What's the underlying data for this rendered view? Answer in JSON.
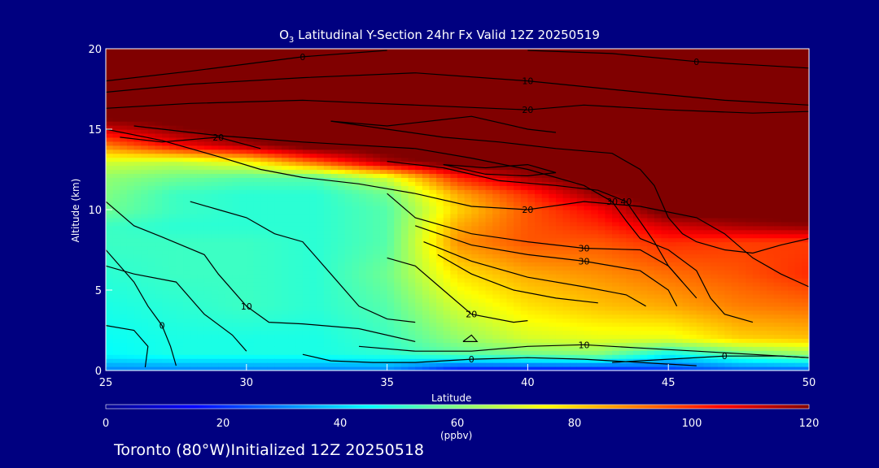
{
  "title": {
    "prefix": "O",
    "sub": "3",
    "rest": " Latitudinal Y-Section 24hr  Fx Valid 12Z 20250519"
  },
  "footer": "Toronto (80°W)Initialized 12Z 20250518",
  "colors": {
    "background": "#000080",
    "axes": "#ffffff",
    "contours": "#000000"
  },
  "chart_data": {
    "type": "heatmap",
    "xlabel": "Latitude",
    "ylabel": "Altitude (km)",
    "xlim": [
      25,
      50
    ],
    "ylim": [
      0,
      20
    ],
    "x_ticks": [
      25,
      30,
      35,
      40,
      45,
      50
    ],
    "y_ticks": [
      0,
      5,
      10,
      15,
      20
    ],
    "grid": false,
    "colorbar": {
      "units": "(ppbv)",
      "range": [
        0,
        120
      ],
      "ticks": [
        0,
        20,
        40,
        60,
        80,
        100,
        120
      ],
      "colormap": "jet"
    },
    "ozone_field": {
      "description_units": "ppbv",
      "latitudes": [
        25,
        27.5,
        30,
        32.5,
        35,
        37.5,
        40,
        42.5,
        45,
        47.5,
        50
      ],
      "altitudes": [
        0,
        1,
        2,
        4,
        6,
        8,
        9,
        10,
        11,
        12,
        13,
        14,
        15,
        16,
        18,
        20
      ],
      "values": [
        [
          30,
          30,
          30,
          30,
          30,
          15,
          15,
          15,
          20,
          25,
          25
        ],
        [
          45,
          48,
          48,
          48,
          50,
          55,
          58,
          60,
          45,
          55,
          62
        ],
        [
          46,
          48,
          48,
          48,
          52,
          62,
          70,
          72,
          72,
          80,
          82
        ],
        [
          48,
          50,
          52,
          50,
          55,
          70,
          78,
          82,
          85,
          90,
          92
        ],
        [
          50,
          52,
          52,
          50,
          58,
          78,
          85,
          88,
          92,
          95,
          100
        ],
        [
          52,
          52,
          52,
          50,
          55,
          88,
          95,
          95,
          100,
          98,
          98
        ],
        [
          52,
          50,
          50,
          50,
          55,
          85,
          95,
          100,
          110,
          115,
          118
        ],
        [
          58,
          52,
          50,
          50,
          55,
          80,
          95,
          105,
          125,
          125,
          125
        ],
        [
          60,
          52,
          50,
          50,
          58,
          85,
          100,
          118,
          125,
          125,
          125
        ],
        [
          62,
          58,
          55,
          55,
          70,
          100,
          115,
          125,
          125,
          125,
          125
        ],
        [
          70,
          68,
          75,
          95,
          115,
          125,
          125,
          125,
          125,
          125,
          125
        ],
        [
          90,
          105,
          115,
          125,
          125,
          125,
          125,
          125,
          125,
          125,
          125
        ],
        [
          110,
          118,
          125,
          125,
          125,
          125,
          125,
          125,
          125,
          125,
          125
        ],
        [
          125,
          125,
          125,
          125,
          125,
          125,
          125,
          125,
          125,
          125,
          125
        ],
        [
          125,
          125,
          125,
          125,
          125,
          125,
          125,
          125,
          125,
          125,
          125
        ],
        [
          125,
          125,
          125,
          125,
          125,
          125,
          125,
          125,
          125,
          125,
          125
        ]
      ]
    },
    "contours": [
      {
        "label": "0",
        "points": [
          [
            25,
            18
          ],
          [
            28,
            18.6
          ],
          [
            32,
            19.5
          ],
          [
            35,
            19.9
          ]
        ]
      },
      {
        "label": "0",
        "points": [
          [
            40,
            19.9
          ],
          [
            43,
            19.7
          ],
          [
            46,
            19.2
          ],
          [
            48,
            19
          ],
          [
            50,
            18.8
          ]
        ]
      },
      {
        "label": "10",
        "points": [
          [
            25,
            17.3
          ],
          [
            28,
            17.8
          ],
          [
            32,
            18.2
          ],
          [
            36,
            18.5
          ],
          [
            40,
            18
          ],
          [
            44,
            17.3
          ],
          [
            47,
            16.8
          ],
          [
            50,
            16.5
          ]
        ]
      },
      {
        "label": "20",
        "points": [
          [
            25,
            16.3
          ],
          [
            28,
            16.6
          ],
          [
            32,
            16.8
          ],
          [
            36,
            16.5
          ],
          [
            40,
            16.2
          ],
          [
            42,
            16.5
          ],
          [
            45,
            16.2
          ],
          [
            48,
            16
          ],
          [
            50,
            16.1
          ]
        ]
      },
      {
        "label": "20",
        "points": [
          [
            25,
            15
          ],
          [
            27,
            14.3
          ],
          [
            29,
            13.3
          ],
          [
            30.5,
            12.5
          ],
          [
            32,
            12
          ],
          [
            34,
            11.6
          ],
          [
            36,
            11
          ],
          [
            38,
            10.2
          ],
          [
            40,
            10
          ],
          [
            42,
            10.5
          ],
          [
            44,
            10.2
          ],
          [
            46,
            9.5
          ],
          [
            47,
            8.5
          ],
          [
            48,
            7
          ],
          [
            49,
            6
          ],
          [
            50,
            5.2
          ]
        ]
      },
      {
        "label": "30",
        "points": [
          [
            26,
            15.2
          ],
          [
            29,
            14.6
          ],
          [
            32,
            14.2
          ],
          [
            34,
            14
          ],
          [
            36,
            13.8
          ],
          [
            38,
            13.2
          ],
          [
            40,
            12.5
          ],
          [
            42,
            11.5
          ],
          [
            43,
            10.5
          ],
          [
            43.5,
            9.3
          ],
          [
            44,
            8.2
          ],
          [
            45,
            7.5
          ],
          [
            46,
            6.2
          ],
          [
            46.5,
            4.5
          ],
          [
            47,
            3.5
          ],
          [
            48,
            3
          ]
        ]
      },
      {
        "label": "40",
        "points": [
          [
            35,
            13
          ],
          [
            37,
            12.6
          ],
          [
            39,
            11.8
          ],
          [
            41,
            11.5
          ],
          [
            42.5,
            11.2
          ],
          [
            43.5,
            10.5
          ],
          [
            44.5,
            8
          ],
          [
            45,
            6.5
          ],
          [
            45.5,
            5.5
          ],
          [
            46,
            4.5
          ]
        ]
      },
      {
        "label": "",
        "points": [
          [
            33,
            15.5
          ],
          [
            35,
            15
          ],
          [
            37,
            14.5
          ],
          [
            39,
            14.2
          ],
          [
            41,
            13.8
          ],
          [
            43,
            13.5
          ],
          [
            44,
            12.5
          ],
          [
            44.5,
            11.5
          ],
          [
            45,
            9.5
          ],
          [
            45.5,
            8.5
          ],
          [
            46,
            8
          ],
          [
            47,
            7.5
          ],
          [
            48,
            7.3
          ],
          [
            49,
            7.8
          ],
          [
            50,
            8.2
          ]
        ]
      },
      {
        "label": "",
        "points": [
          [
            33,
            15.5
          ],
          [
            35,
            15.2
          ],
          [
            36.5,
            15.5
          ],
          [
            38,
            15.8
          ],
          [
            40,
            15
          ],
          [
            41,
            14.8
          ]
        ]
      },
      {
        "label": "",
        "points": [
          [
            37,
            12.8
          ],
          [
            38.5,
            12.6
          ],
          [
            40,
            12.8
          ],
          [
            41,
            12.3
          ],
          [
            40,
            12.1
          ],
          [
            38.5,
            12.2
          ],
          [
            37,
            12.8
          ]
        ]
      },
      {
        "label": "30",
        "points": [
          [
            35,
            11
          ],
          [
            36,
            9.5
          ],
          [
            38,
            8.5
          ],
          [
            40,
            8
          ],
          [
            42,
            7.6
          ],
          [
            44,
            7.5
          ],
          [
            45,
            6.5
          ],
          [
            45.5,
            5.5
          ]
        ]
      },
      {
        "label": "30",
        "points": [
          [
            36,
            9
          ],
          [
            38,
            7.8
          ],
          [
            40,
            7.2
          ],
          [
            42,
            6.8
          ],
          [
            44,
            6.2
          ],
          [
            45,
            5
          ],
          [
            45.3,
            4
          ]
        ]
      },
      {
        "label": "",
        "points": [
          [
            36.3,
            8
          ],
          [
            38,
            6.8
          ],
          [
            40,
            5.8
          ],
          [
            42,
            5.2
          ],
          [
            43.5,
            4.7
          ],
          [
            44.2,
            4
          ]
        ]
      },
      {
        "label": "",
        "points": [
          [
            36.8,
            7.2
          ],
          [
            38,
            6
          ],
          [
            39.5,
            5
          ],
          [
            41,
            4.5
          ],
          [
            42.5,
            4.2
          ]
        ]
      },
      {
        "label": "20",
        "points": [
          [
            35,
            7
          ],
          [
            36,
            6.5
          ],
          [
            37,
            5
          ],
          [
            38,
            3.5
          ],
          [
            39.5,
            3
          ],
          [
            40,
            3.1
          ]
        ]
      },
      {
        "label": "20",
        "points": [
          [
            25.5,
            14.5
          ],
          [
            27,
            14.2
          ],
          [
            29,
            14.5
          ],
          [
            30.5,
            13.8
          ]
        ]
      },
      {
        "label": "10",
        "points": [
          [
            25,
            10.5
          ],
          [
            26,
            9
          ],
          [
            27,
            8.3
          ],
          [
            28.5,
            7.2
          ],
          [
            29,
            6
          ],
          [
            30,
            4
          ],
          [
            30.8,
            3
          ],
          [
            32,
            2.9
          ],
          [
            34,
            2.6
          ],
          [
            36,
            1.8
          ]
        ]
      },
      {
        "label": "10",
        "points": [
          [
            34,
            1.5
          ],
          [
            36,
            1.2
          ],
          [
            38,
            1.2
          ],
          [
            40,
            1.5
          ],
          [
            42,
            1.6
          ],
          [
            44,
            1.4
          ],
          [
            46,
            1.2
          ],
          [
            48,
            1
          ],
          [
            50,
            0.8
          ]
        ]
      },
      {
        "label": "0",
        "points": [
          [
            25,
            7.5
          ],
          [
            26,
            5.5
          ],
          [
            26.5,
            4
          ],
          [
            27,
            2.8
          ],
          [
            27.3,
            1.5
          ],
          [
            27.5,
            0.3
          ]
        ]
      },
      {
        "label": "",
        "points": [
          [
            25,
            6.5
          ],
          [
            26,
            6
          ],
          [
            27.5,
            5.5
          ],
          [
            28.5,
            3.5
          ],
          [
            29.5,
            2.2
          ],
          [
            30,
            1.2
          ]
        ]
      },
      {
        "label": "",
        "points": [
          [
            25,
            2.8
          ],
          [
            26,
            2.5
          ],
          [
            26.5,
            1.5
          ],
          [
            26.4,
            0.2
          ]
        ]
      },
      {
        "label": "0",
        "points": [
          [
            32,
            1
          ],
          [
            33,
            0.6
          ],
          [
            34.5,
            0.5
          ],
          [
            36,
            0.5
          ],
          [
            38,
            0.7
          ],
          [
            40,
            0.8
          ],
          [
            42,
            0.7
          ],
          [
            44,
            0.5
          ],
          [
            46,
            0.3
          ]
        ]
      },
      {
        "label": "0",
        "points": [
          [
            43,
            0.5
          ],
          [
            45,
            0.7
          ],
          [
            47,
            0.9
          ],
          [
            49,
            0.9
          ],
          [
            50,
            0.8
          ]
        ]
      },
      {
        "label": "",
        "points": [
          [
            37.7,
            1.8
          ],
          [
            38,
            2.2
          ],
          [
            38.2,
            1.8
          ],
          [
            37.7,
            1.8
          ]
        ]
      },
      {
        "label": "",
        "points": [
          [
            28,
            10.5
          ],
          [
            29,
            10
          ],
          [
            30,
            9.5
          ],
          [
            31,
            8.5
          ],
          [
            32,
            8
          ],
          [
            33,
            6
          ],
          [
            34,
            4
          ],
          [
            35,
            3.2
          ],
          [
            36,
            3
          ]
        ]
      }
    ]
  }
}
